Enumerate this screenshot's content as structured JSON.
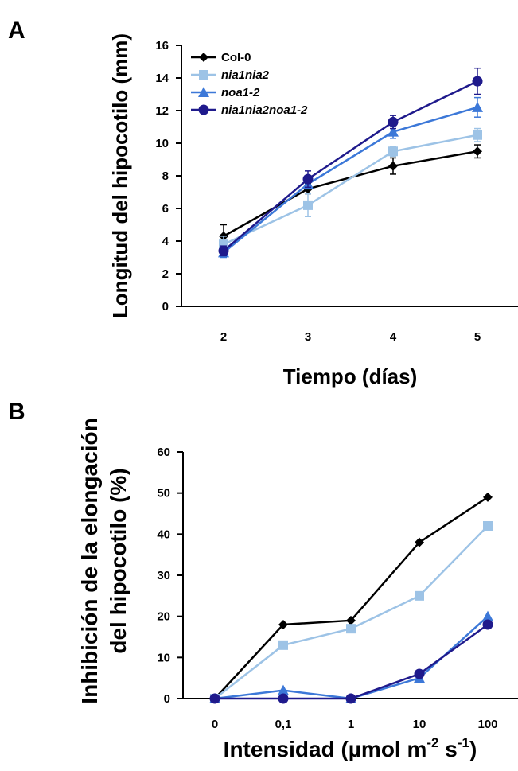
{
  "chart_data": [
    {
      "type": "line",
      "panel": "A",
      "xlabel": "Tiempo (días)",
      "ylabel": "Longitud del hipocotilo (mm)",
      "categories": [
        "2",
        "3",
        "4",
        "5"
      ],
      "ylim": [
        0,
        16
      ],
      "yticks": [
        "0",
        "2",
        "4",
        "6",
        "8",
        "10",
        "12",
        "14",
        "16"
      ],
      "legend_position": "top-left",
      "series": [
        {
          "name": "Col-0",
          "color": "#000000",
          "marker": "diamond",
          "values": [
            4.3,
            7.2,
            8.6,
            9.5
          ],
          "errors": [
            0.7,
            0.3,
            0.5,
            0.4
          ]
        },
        {
          "name": "nia1nia2",
          "color": "#9dc3e6",
          "marker": "square",
          "values": [
            3.8,
            6.2,
            9.5,
            10.5
          ],
          "errors": [
            0.5,
            0.7,
            0.3,
            0.4
          ]
        },
        {
          "name": "noa1-2",
          "color": "#3c78d8",
          "marker": "triangle",
          "values": [
            3.3,
            7.5,
            10.7,
            12.2
          ],
          "errors": [
            0.3,
            0.3,
            0.4,
            0.6
          ]
        },
        {
          "name": "nia1nia2noa1-2",
          "color": "#1f1a8c",
          "marker": "circle",
          "values": [
            3.4,
            7.8,
            11.3,
            13.8
          ],
          "errors": [
            0.3,
            0.5,
            0.4,
            0.8
          ]
        }
      ]
    },
    {
      "type": "line",
      "panel": "B",
      "xlabel": "Intensidad (µmol m",
      "xlabel_sup1": "-2",
      "xlabel_mid": " s",
      "xlabel_sup2": "-1",
      "xlabel_end": ")",
      "ylabel_line1": "Inhibición de la elongación",
      "ylabel_line2": "del hipocotilo (%)",
      "categories": [
        "0",
        "0,1",
        "1",
        "10",
        "100"
      ],
      "ylim": [
        0,
        60
      ],
      "yticks": [
        "0",
        "10",
        "20",
        "30",
        "40",
        "50",
        "60"
      ],
      "series": [
        {
          "name": "Col-0",
          "color": "#000000",
          "marker": "diamond",
          "values": [
            0,
            18,
            19,
            38,
            49
          ]
        },
        {
          "name": "nia1nia2",
          "color": "#9dc3e6",
          "marker": "square",
          "values": [
            0,
            13,
            17,
            25,
            42
          ]
        },
        {
          "name": "noa1-2",
          "color": "#3c78d8",
          "marker": "triangle",
          "values": [
            0,
            2,
            0,
            5,
            20
          ]
        },
        {
          "name": "nia1nia2noa1-2",
          "color": "#1f1a8c",
          "marker": "circle",
          "values": [
            0,
            0,
            0,
            6,
            18
          ]
        }
      ]
    }
  ]
}
